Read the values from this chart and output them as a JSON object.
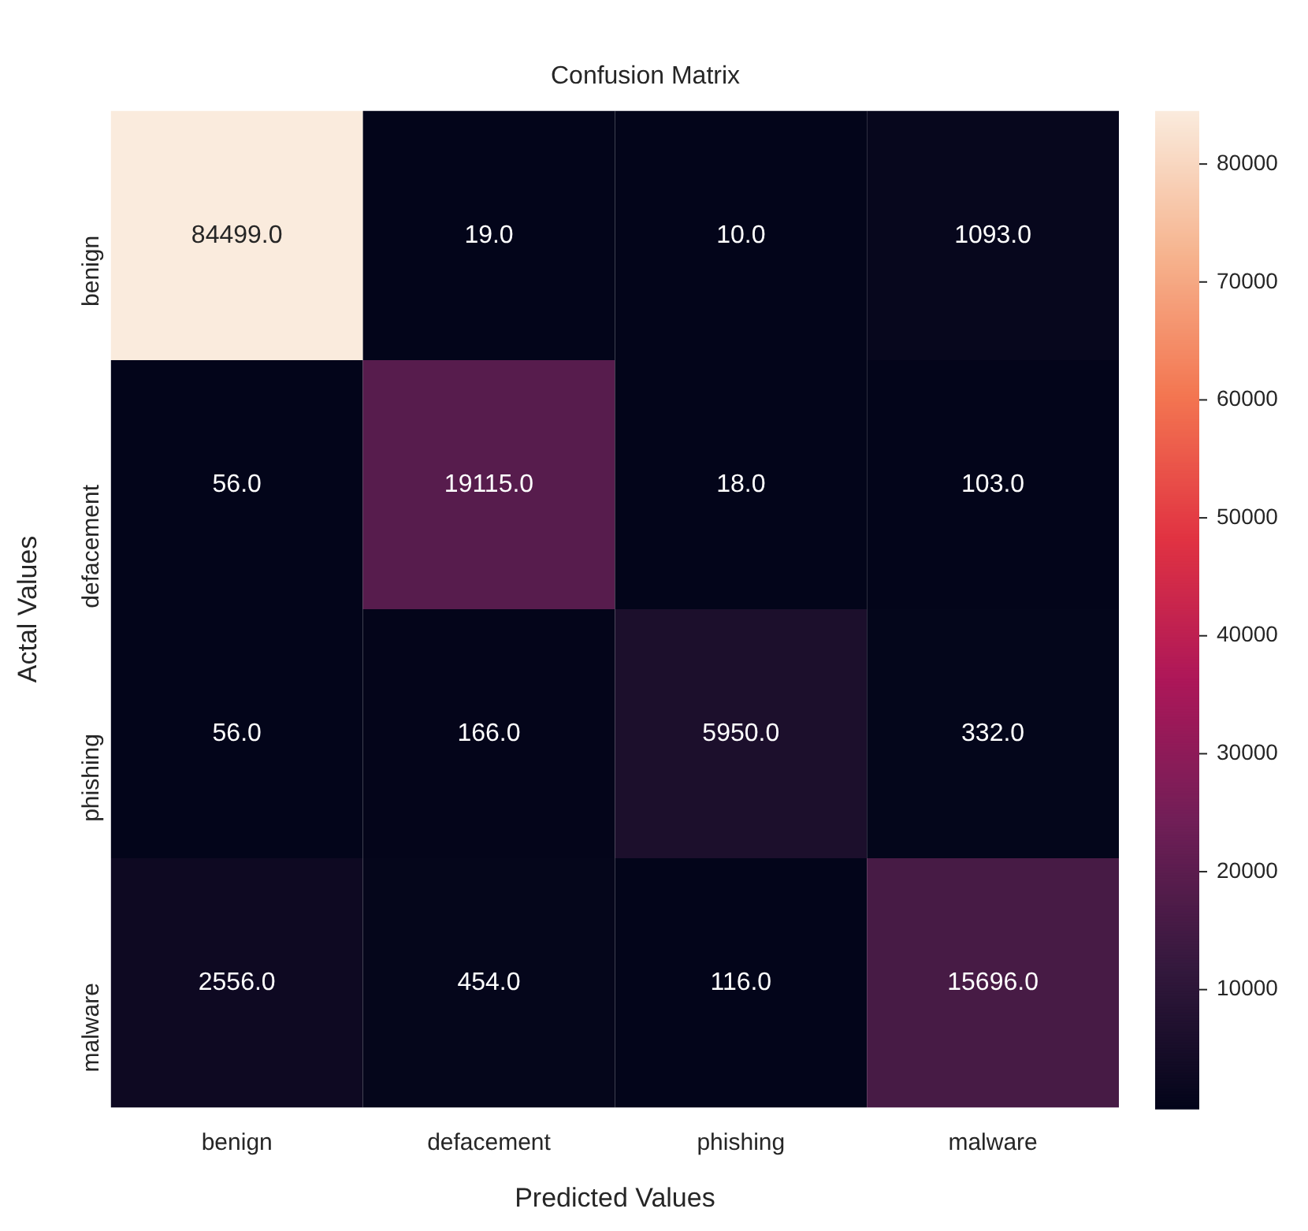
{
  "chart_data": {
    "type": "heatmap",
    "title": "Confusion Matrix",
    "xlabel": "Predicted Values",
    "ylabel": "Actal Values",
    "categories": [
      "benign",
      "defacement",
      "phishing",
      "malware"
    ],
    "y_categories": [
      "benign",
      "defacement",
      "phishing",
      "malware"
    ],
    "cells": [
      [
        84499,
        19,
        10,
        1093
      ],
      [
        56,
        19115,
        18,
        103
      ],
      [
        56,
        166,
        5950,
        332
      ],
      [
        2556,
        454,
        116,
        15696
      ]
    ],
    "cell_labels": [
      [
        "84499.0",
        "19.0",
        "10.0",
        "1093.0"
      ],
      [
        "56.0",
        "19115.0",
        "18.0",
        "103.0"
      ],
      [
        "56.0",
        "166.0",
        "5950.0",
        "332.0"
      ],
      [
        "2556.0",
        "454.0",
        "116.0",
        "15696.0"
      ]
    ],
    "clim": [
      10,
      84499
    ],
    "cticks": [
      10000,
      20000,
      30000,
      40000,
      50000,
      60000,
      70000,
      80000
    ]
  }
}
